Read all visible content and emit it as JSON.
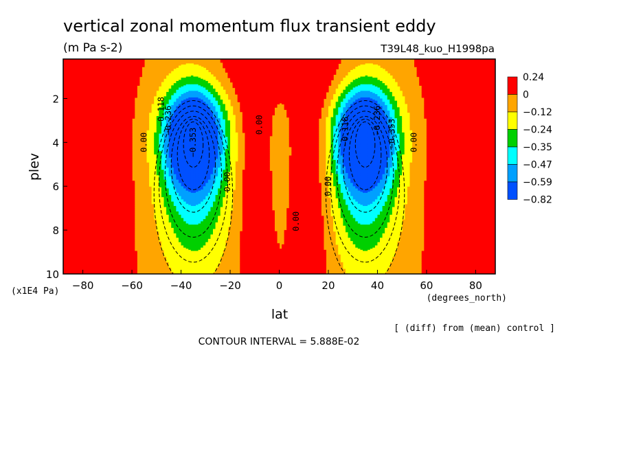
{
  "chart_data": {
    "type": "heatmap",
    "title": "vertical zonal momentum flux transient eddy",
    "units": "(m Pa s-2)",
    "run_label": "T39L48_kuo_H1998pa",
    "xlabel": "lat",
    "x_units": "(degrees_north)",
    "ylabel": "plev",
    "y_units": "(x1E4 Pa)",
    "xlim": [
      -88,
      88
    ],
    "ylim": [
      10,
      0.2
    ],
    "x_ticks": [
      -80,
      -60,
      -40,
      -20,
      0,
      20,
      40,
      60,
      80
    ],
    "x_tick_labels": [
      "-80",
      "-60",
      "-40",
      "-20",
      "0",
      "20",
      "40",
      "60",
      "80"
    ],
    "y_ticks": [
      2,
      4,
      6,
      8,
      10
    ],
    "y_tick_labels": [
      "2",
      "4",
      "6",
      "8",
      "10"
    ],
    "diff_note": "[ (diff) from (mean) control ]",
    "contour_interval": "CONTOUR INTERVAL = 5.888E-02",
    "contour_labels": [
      "0.00",
      "-0.118",
      "-0.236",
      "-0.353",
      "0.00",
      "0.00",
      "0.00",
      "0.00",
      "-0.118",
      "-0.236",
      "-0.353",
      "0.00"
    ],
    "legend": {
      "position": "right",
      "levels": [
        "0.24",
        "0",
        "-0.12",
        "-0.24",
        "-0.35",
        "-0.47",
        "-0.59",
        "-0.82"
      ],
      "colors": [
        "#ff0000",
        "#ffa500",
        "#ffff00",
        "#00d000",
        "#00ffff",
        "#00a0ff",
        "#0050ff"
      ]
    },
    "field": {
      "grid": "cells: jets at lat ±35 centered near plev 3.7, magnitude relative to -0.82 at core",
      "jet_centers_lat": [
        -35,
        35
      ],
      "jet_center_plev": 3.7,
      "jet_core_value": -0.82
    }
  }
}
